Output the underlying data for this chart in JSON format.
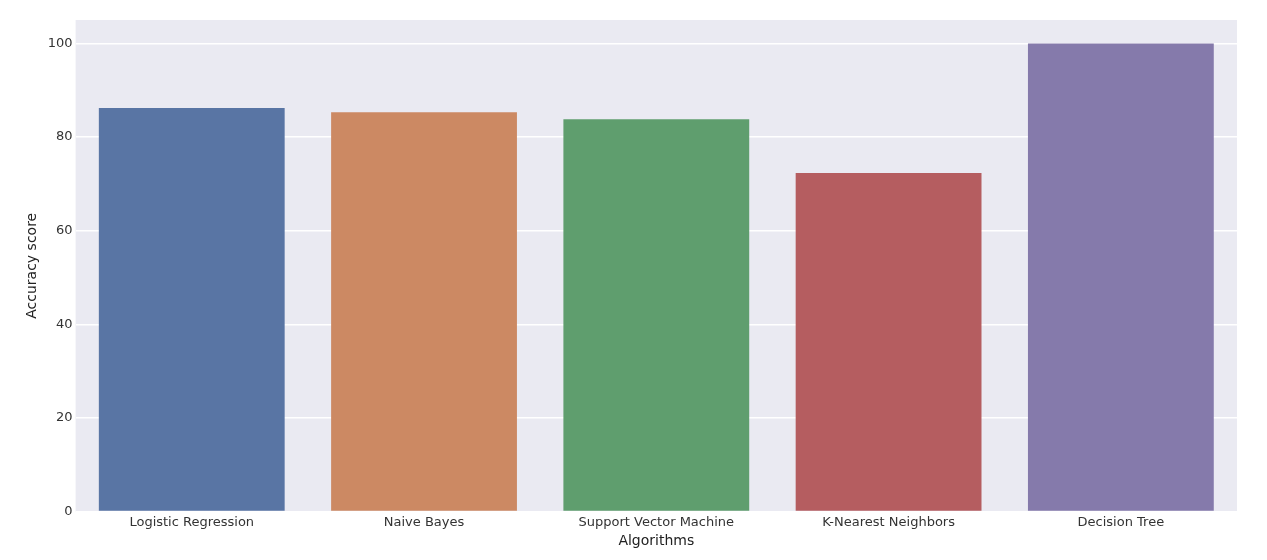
{
  "chart_data": {
    "type": "bar",
    "xlabel": "Algorithms",
    "ylabel": "Accuracy score",
    "categories": [
      "Logistic Regression",
      "Naive Bayes",
      "Support Vector Machine",
      "K-Nearest Neighbors",
      "Decision Tree"
    ],
    "values": [
      86.2,
      85.3,
      83.8,
      72.3,
      100
    ],
    "colors": [
      "#5975a4",
      "#cc8963",
      "#5f9e6e",
      "#b55d60",
      "#857aab"
    ],
    "ylim": [
      0,
      105
    ],
    "yticks": [
      0,
      20,
      40,
      60,
      80,
      100
    ],
    "grid": "y",
    "legend": false
  }
}
